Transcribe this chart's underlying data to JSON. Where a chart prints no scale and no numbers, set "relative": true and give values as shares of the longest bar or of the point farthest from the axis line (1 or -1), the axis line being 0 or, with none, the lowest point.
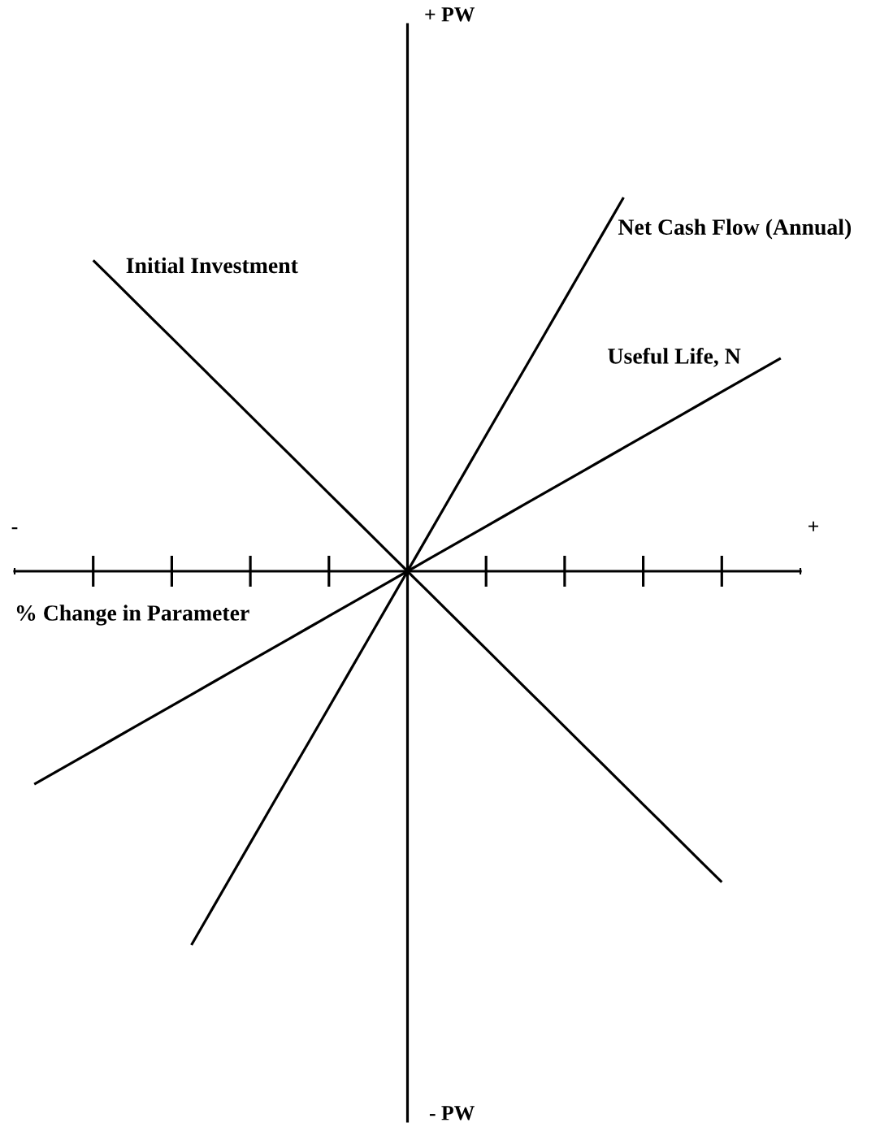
{
  "chart_data": {
    "type": "line",
    "relative": true,
    "xlabel": "% Change in Parameter",
    "annotations": [
      "+ PW",
      "- PW",
      "-",
      "+"
    ],
    "categories": [
      null,
      null,
      null,
      null,
      null,
      null,
      null,
      null,
      null,
      null,
      null,
      null,
      null,
      null,
      null,
      null,
      null,
      null,
      null,
      null,
      null,
      null,
      null,
      null,
      null,
      null,
      null,
      null,
      null,
      null,
      null,
      null,
      null,
      null,
      null,
      null,
      null,
      null,
      null,
      null,
      null
    ],
    "series": [
      {
        "name": "Initial Investment",
        "color": "#000000",
        "values": [
          null,
          null,
          null,
          null,
          0.832,
          0.78,
          0.728,
          0.676,
          0.624,
          0.572,
          0.52,
          0.468,
          0.416,
          0.364,
          0.312,
          0.26,
          0.208,
          0.156,
          0.104,
          0.052,
          0,
          -0.052,
          -0.104,
          -0.156,
          -0.208,
          -0.26,
          -0.312,
          -0.364,
          -0.416,
          -0.468,
          -0.52,
          -0.572,
          -0.624,
          -0.676,
          -0.728,
          -0.78,
          -0.832,
          null,
          null,
          null,
          null
        ]
      },
      {
        "name": "Net Cash Flow (Annual)",
        "color": "#000000",
        "values": [
          null,
          null,
          null,
          null,
          null,
          null,
          null,
          null,
          null,
          -1,
          -0.909,
          -0.818,
          -0.727,
          -0.636,
          -0.545,
          -0.455,
          -0.364,
          -0.273,
          -0.182,
          -0.091,
          0,
          0.091,
          0.182,
          0.273,
          0.364,
          0.455,
          0.545,
          0.636,
          0.727,
          0.818,
          0.909,
          1,
          null,
          null,
          null,
          null,
          null,
          null,
          null,
          null,
          null
        ]
      },
      {
        "name": "Useful Life, N",
        "color": "#000000",
        "values": [
          null,
          -0.57,
          -0.54,
          -0.51,
          -0.48,
          -0.45,
          -0.42,
          -0.39,
          -0.36,
          -0.33,
          -0.3,
          -0.27,
          -0.24,
          -0.21,
          -0.18,
          -0.15,
          -0.12,
          -0.09,
          -0.06,
          -0.03,
          0,
          0.03,
          0.06,
          0.09,
          0.12,
          0.15,
          0.18,
          0.21,
          0.24,
          0.27,
          0.3,
          0.33,
          0.36,
          0.39,
          0.42,
          0.45,
          0.48,
          0.51,
          0.54,
          0.57,
          null
        ]
      }
    ]
  }
}
